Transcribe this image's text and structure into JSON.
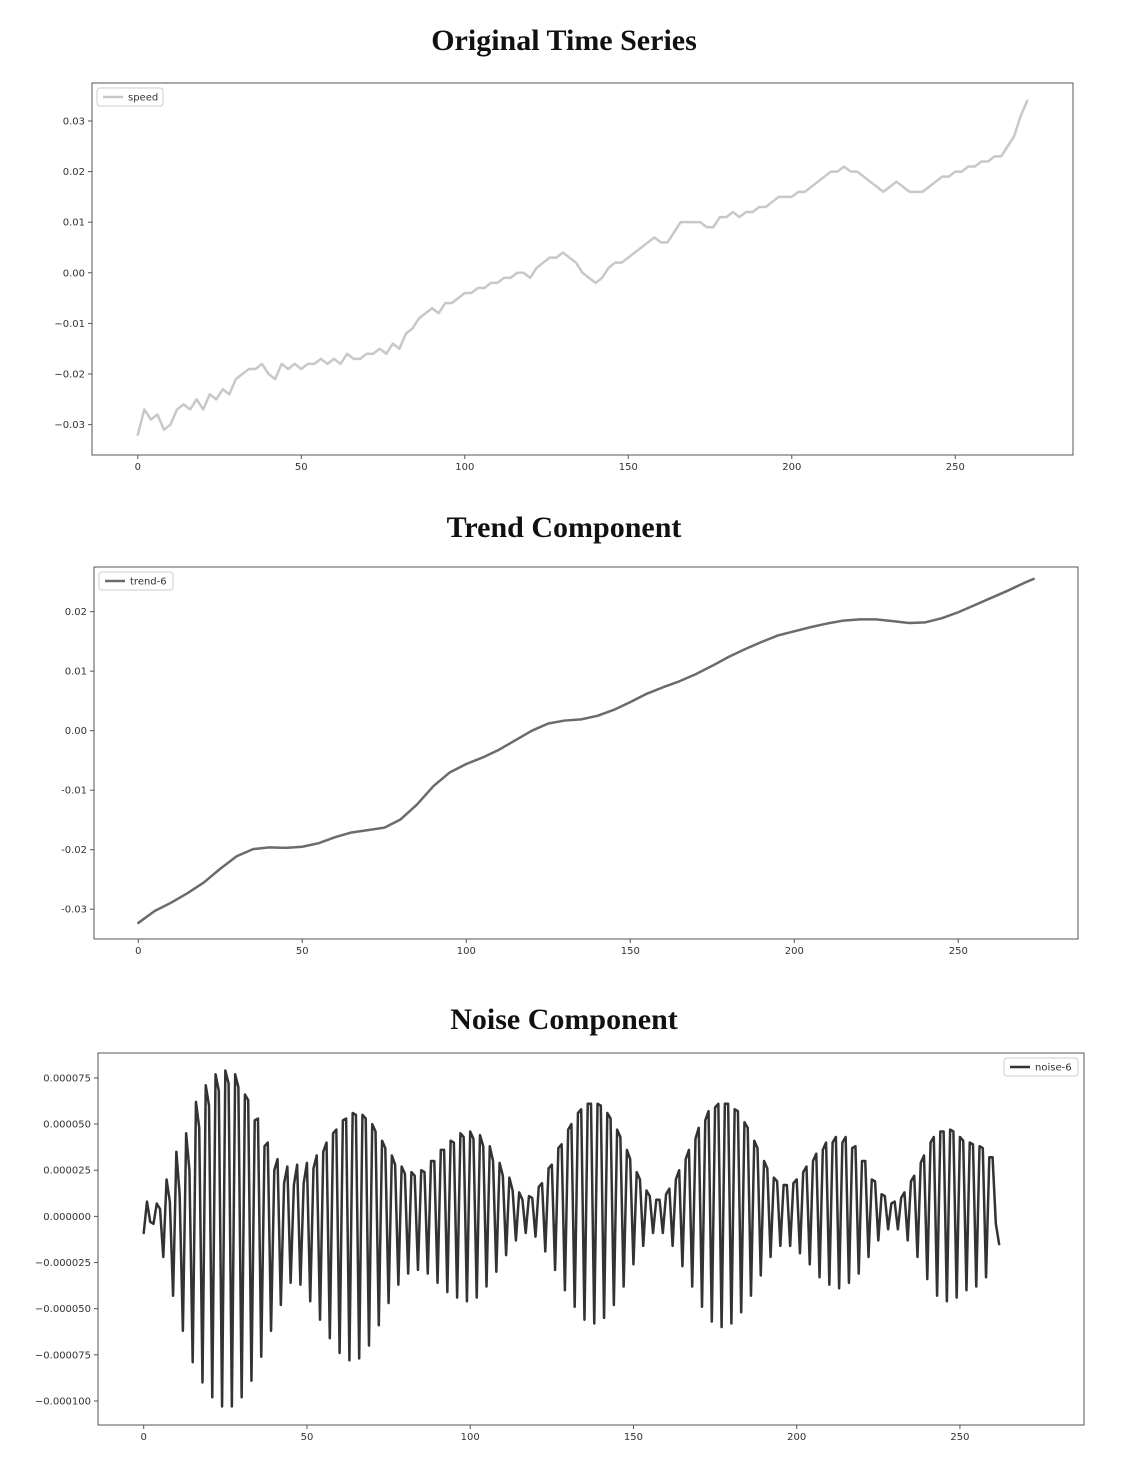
{
  "chart_data": [
    {
      "type": "line",
      "title": "Original Time Series",
      "xlabel": "",
      "ylabel": "",
      "xlim": [
        -14,
        286
      ],
      "ylim": [
        -0.036,
        0.0375
      ],
      "xticks": [
        0,
        50,
        100,
        150,
        200,
        250
      ],
      "yticks": [
        -0.03,
        -0.02,
        -0.01,
        0.0,
        0.01,
        0.02,
        0.03
      ],
      "ytick_labels": [
        "−0.03",
        "−0.02",
        "−0.01",
        "0.00",
        "0.01",
        "0.02",
        "0.03"
      ],
      "legend_position": "top-left",
      "series": [
        {
          "name": "speed",
          "color": "#c8c8c8",
          "x": [
            0,
            2,
            4,
            6,
            8,
            10,
            12,
            14,
            16,
            18,
            20,
            22,
            24,
            26,
            28,
            30,
            32,
            34,
            36,
            38,
            40,
            42,
            44,
            46,
            48,
            50,
            52,
            54,
            56,
            58,
            60,
            62,
            64,
            66,
            68,
            70,
            72,
            74,
            76,
            78,
            80,
            82,
            84,
            86,
            88,
            90,
            92,
            94,
            96,
            98,
            100,
            102,
            104,
            106,
            108,
            110,
            112,
            114,
            116,
            118,
            120,
            122,
            124,
            126,
            128,
            130,
            132,
            134,
            136,
            138,
            140,
            142,
            144,
            146,
            148,
            150,
            152,
            154,
            156,
            158,
            160,
            162,
            164,
            166,
            168,
            170,
            172,
            174,
            176,
            178,
            180,
            182,
            184,
            186,
            188,
            190,
            192,
            194,
            196,
            198,
            200,
            202,
            204,
            206,
            208,
            210,
            212,
            214,
            216,
            218,
            220,
            222,
            224,
            226,
            228,
            230,
            232,
            234,
            236,
            238,
            240,
            242,
            244,
            246,
            248,
            250,
            252,
            254,
            256,
            258,
            260,
            262,
            264,
            266,
            268,
            270,
            272
          ],
          "y": [
            -0.032,
            -0.027,
            -0.029,
            -0.028,
            -0.031,
            -0.03,
            -0.027,
            -0.026,
            -0.027,
            -0.025,
            -0.027,
            -0.024,
            -0.025,
            -0.023,
            -0.024,
            -0.021,
            -0.02,
            -0.019,
            -0.019,
            -0.018,
            -0.02,
            -0.021,
            -0.018,
            -0.019,
            -0.018,
            -0.019,
            -0.018,
            -0.018,
            -0.017,
            -0.018,
            -0.017,
            -0.018,
            -0.016,
            -0.017,
            -0.017,
            -0.016,
            -0.016,
            -0.015,
            -0.016,
            -0.014,
            -0.015,
            -0.012,
            -0.011,
            -0.009,
            -0.008,
            -0.007,
            -0.008,
            -0.006,
            -0.006,
            -0.005,
            -0.004,
            -0.004,
            -0.003,
            -0.003,
            -0.002,
            -0.002,
            -0.001,
            -0.001,
            0.0,
            0.0,
            -0.001,
            0.001,
            0.002,
            0.003,
            0.003,
            0.004,
            0.003,
            0.002,
            0.0,
            -0.001,
            -0.002,
            -0.001,
            0.001,
            0.002,
            0.002,
            0.003,
            0.004,
            0.005,
            0.006,
            0.007,
            0.006,
            0.006,
            0.008,
            0.01,
            0.01,
            0.01,
            0.01,
            0.009,
            0.009,
            0.011,
            0.011,
            0.012,
            0.011,
            0.012,
            0.012,
            0.013,
            0.013,
            0.014,
            0.015,
            0.015,
            0.015,
            0.016,
            0.016,
            0.017,
            0.018,
            0.019,
            0.02,
            0.02,
            0.021,
            0.02,
            0.02,
            0.019,
            0.018,
            0.017,
            0.016,
            0.017,
            0.018,
            0.017,
            0.016,
            0.016,
            0.016,
            0.017,
            0.018,
            0.019,
            0.019,
            0.02,
            0.02,
            0.021,
            0.021,
            0.022,
            0.022,
            0.023,
            0.023,
            0.025,
            0.027,
            0.031,
            0.034
          ]
        }
      ]
    },
    {
      "type": "line",
      "title": "Trend Component",
      "xlabel": "",
      "ylabel": "",
      "xlim": [
        -13.5,
        286.5
      ],
      "ylim": [
        -0.035,
        0.0275
      ],
      "xticks": [
        0,
        50,
        100,
        150,
        200,
        250
      ],
      "yticks": [
        -0.03,
        -0.02,
        -0.01,
        0.0,
        0.01,
        0.02
      ],
      "ytick_labels": [
        "-0.03",
        "-0.02",
        "-0.01",
        "0.00",
        "0.01",
        "0.02"
      ],
      "legend_position": "top-left",
      "series": [
        {
          "name": "trend-6",
          "color": "#6b6b6b",
          "x": [
            0,
            5,
            10,
            15,
            20,
            25,
            30,
            35,
            40,
            45,
            50,
            55,
            60,
            65,
            70,
            75,
            80,
            85,
            90,
            95,
            100,
            105,
            110,
            115,
            120,
            125,
            130,
            135,
            140,
            145,
            150,
            155,
            160,
            165,
            170,
            175,
            180,
            185,
            190,
            195,
            200,
            205,
            210,
            215,
            220,
            225,
            230,
            235,
            240,
            245,
            250,
            255,
            260,
            265,
            270,
            273
          ],
          "y": [
            -0.0323,
            -0.0303,
            -0.0289,
            -0.0273,
            -0.0255,
            -0.0232,
            -0.0211,
            -0.0199,
            -0.0196,
            -0.0197,
            -0.0195,
            -0.0189,
            -0.0179,
            -0.0171,
            -0.0167,
            -0.0163,
            -0.0149,
            -0.0124,
            -0.0093,
            -0.007,
            -0.0056,
            -0.0045,
            -0.0032,
            -0.0016,
            0.0,
            0.0012,
            0.0017,
            0.0019,
            0.0025,
            0.0035,
            0.0048,
            0.0062,
            0.0073,
            0.0083,
            0.0095,
            0.0109,
            0.0124,
            0.0137,
            0.0149,
            0.016,
            0.0167,
            0.0174,
            0.018,
            0.0185,
            0.0187,
            0.0187,
            0.0184,
            0.0181,
            0.0182,
            0.0189,
            0.0199,
            0.0211,
            0.0223,
            0.0235,
            0.0248,
            0.0255
          ]
        }
      ]
    },
    {
      "type": "line",
      "title": "Noise Component",
      "xlabel": "",
      "ylabel": "",
      "xlim": [
        -14,
        288
      ],
      "ylim": [
        -0.000113,
        8.85e-05
      ],
      "xticks": [
        0,
        50,
        100,
        150,
        200,
        250
      ],
      "yticks": [
        -0.0001,
        -7.5e-05,
        -5e-05,
        -2.5e-05,
        0.0,
        2.5e-05,
        5e-05,
        7.5e-05
      ],
      "ytick_labels": [
        "−0.000100",
        "−0.000075",
        "−0.000050",
        "−0.000025",
        "0.000000",
        "0.000025",
        "0.000050",
        "0.000075"
      ],
      "legend_position": "top-right",
      "series": [
        {
          "name": "noise-6",
          "color": "#333333",
          "x_start": 0,
          "x_step": 1,
          "y": [
            -9e-06,
            8e-06,
            -3e-06,
            -4e-06,
            7e-06,
            4e-06,
            -2.2e-05,
            2e-05,
            8e-06,
            -4.3e-05,
            3.5e-05,
            1.2e-05,
            -6.2e-05,
            4.5e-05,
            2.5e-05,
            -7.9e-05,
            6.2e-05,
            4.8e-05,
            -9e-05,
            7.1e-05,
            6e-05,
            -9.8e-05,
            7.7e-05,
            6.8e-05,
            -0.000103,
            7.9e-05,
            7.2e-05,
            -0.000103,
            7.7e-05,
            7e-05,
            -9.8e-05,
            6.6e-05,
            6.3e-05,
            -8.9e-05,
            5.2e-05,
            5.3e-05,
            -7.6e-05,
            3.8e-05,
            4e-05,
            -6.2e-05,
            2.5e-05,
            3.1e-05,
            -4.8e-05,
            1.8e-05,
            2.7e-05,
            -3.6e-05,
            1.7e-05,
            2.8e-05,
            -3.7e-05,
            1.8e-05,
            2.9e-05,
            -4.6e-05,
            2.6e-05,
            3.3e-05,
            -5.6e-05,
            3.5e-05,
            4e-05,
            -6.6e-05,
            4.5e-05,
            4.7e-05,
            -7.4e-05,
            5.2e-05,
            5.3e-05,
            -7.8e-05,
            5.6e-05,
            5.5e-05,
            -7.7e-05,
            5.5e-05,
            5.3e-05,
            -7e-05,
            5e-05,
            4.6e-05,
            -5.9e-05,
            4.1e-05,
            3.7e-05,
            -4.7e-05,
            3.3e-05,
            2.8e-05,
            -3.7e-05,
            2.7e-05,
            2.3e-05,
            -3.1e-05,
            2.4e-05,
            2.2e-05,
            -2.9e-05,
            2.5e-05,
            2.4e-05,
            -3.1e-05,
            3e-05,
            3e-05,
            -3.6e-05,
            3.6e-05,
            3.6e-05,
            -4.1e-05,
            4.1e-05,
            4e-05,
            -4.4e-05,
            4.5e-05,
            4.3e-05,
            -4.6e-05,
            4.6e-05,
            4.2e-05,
            -4.4e-05,
            4.4e-05,
            3.8e-05,
            -3.8e-05,
            3.8e-05,
            3e-05,
            -3e-05,
            2.9e-05,
            2.2e-05,
            -2.1e-05,
            2.1e-05,
            1.4e-05,
            -1.3e-05,
            1.3e-05,
            9e-06,
            -9e-06,
            1.1e-05,
            1e-05,
            -1.1e-05,
            1.6e-05,
            1.8e-05,
            -1.9e-05,
            2.6e-05,
            2.8e-05,
            -2.9e-05,
            3.7e-05,
            3.9e-05,
            -4e-05,
            4.7e-05,
            5e-05,
            -4.9e-05,
            5.6e-05,
            5.8e-05,
            -5.6e-05,
            6.1e-05,
            6.1e-05,
            -5.8e-05,
            6.1e-05,
            6e-05,
            -5.5e-05,
            5.6e-05,
            5.3e-05,
            -4.8e-05,
            4.7e-05,
            4.3e-05,
            -3.8e-05,
            3.6e-05,
            3.1e-05,
            -2.6e-05,
            2.4e-05,
            2e-05,
            -1.6e-05,
            1.4e-05,
            1.1e-05,
            -9e-06,
            9e-06,
            9e-06,
            -9e-06,
            1.2e-05,
            1.5e-05,
            -1.6e-05,
            2e-05,
            2.5e-05,
            -2.7e-05,
            3.1e-05,
            3.6e-05,
            -3.8e-05,
            4.2e-05,
            4.8e-05,
            -4.9e-05,
            5.2e-05,
            5.7e-05,
            -5.7e-05,
            5.9e-05,
            6.1e-05,
            -6e-05,
            6.1e-05,
            6.1e-05,
            -5.8e-05,
            5.8e-05,
            5.7e-05,
            -5.2e-05,
            5.1e-05,
            4.8e-05,
            -4.3e-05,
            4.1e-05,
            3.7e-05,
            -3.2e-05,
            3e-05,
            2.6e-05,
            -2.2e-05,
            2.1e-05,
            1.9e-05,
            -1.6e-05,
            1.7e-05,
            1.7e-05,
            -1.6e-05,
            1.8e-05,
            2e-05,
            -2e-05,
            2.4e-05,
            2.7e-05,
            -2.6e-05,
            3e-05,
            3.4e-05,
            -3.3e-05,
            3.6e-05,
            4e-05,
            -3.7e-05,
            4e-05,
            4.3e-05,
            -3.9e-05,
            4e-05,
            4.3e-05,
            -3.6e-05,
            3.7e-05,
            3.8e-05,
            -3.1e-05,
            3e-05,
            3e-05,
            -2.2e-05,
            2e-05,
            1.9e-05,
            -1.3e-05,
            1.2e-05,
            1.1e-05,
            -7e-06,
            7e-06,
            8e-06,
            -7e-06,
            1e-05,
            1.3e-05,
            -1.3e-05,
            1.9e-05,
            2.2e-05,
            -2.2e-05,
            2.9e-05,
            3.3e-05,
            -3.4e-05,
            4e-05,
            4.3e-05,
            -4.3e-05,
            4.6e-05,
            4.6e-05,
            -4.6e-05,
            4.7e-05,
            4.6e-05,
            -4.4e-05,
            4.3e-05,
            4.1e-05,
            -4e-05,
            4e-05,
            3.9e-05,
            -3.8e-05,
            3.8e-05,
            3.7e-05,
            -3.3e-05,
            3.2e-05,
            3.2e-05,
            -4e-06,
            -1.5e-05
          ]
        }
      ]
    }
  ]
}
